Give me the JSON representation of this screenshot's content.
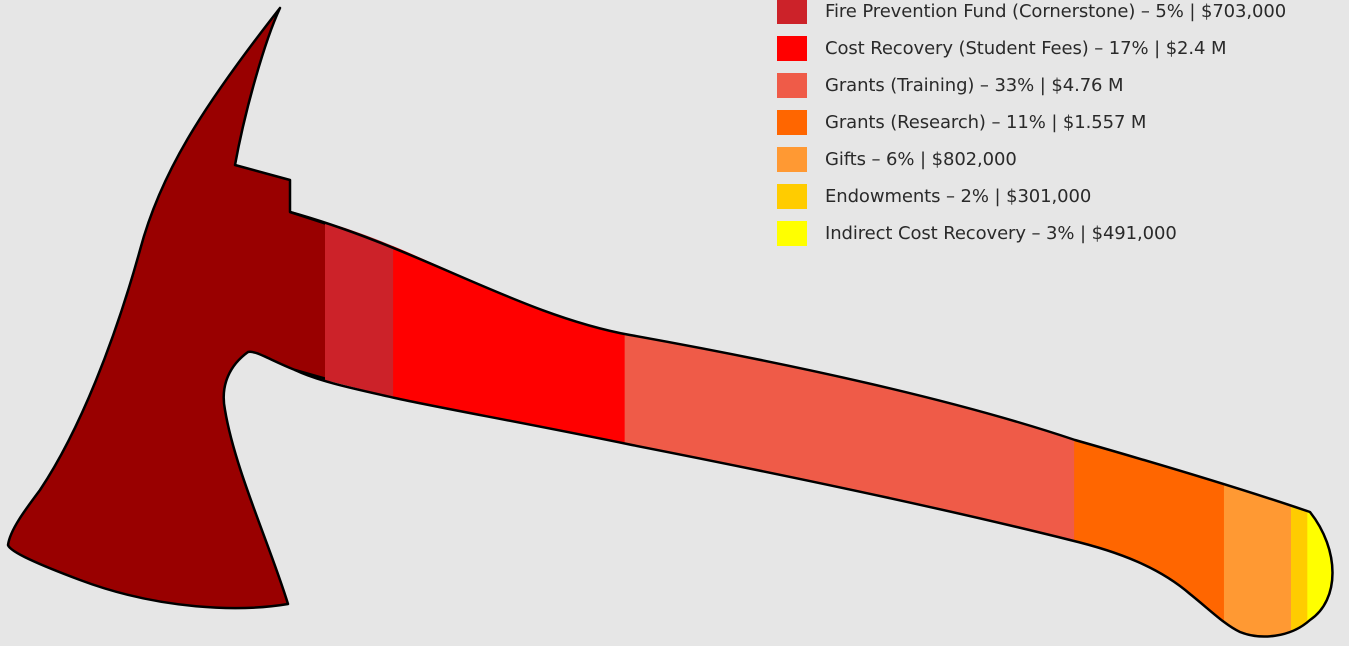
{
  "chart_data": {
    "type": "bar",
    "title": "",
    "units": "USD",
    "series": [
      {
        "name": "Fire Prevention Fund (Cornerstone)",
        "percent": 5,
        "label": "Fire Prevention Fund (Cornerstone) – 5%  |  $703,000",
        "color": "#cc2229"
      },
      {
        "name": "Cost Recovery (Student Fees)",
        "percent": 17,
        "label": "Cost Recovery (Student Fees) – 17%  |  $2.4 M",
        "color": "#ff0000"
      },
      {
        "name": "Grants (Training)",
        "percent": 33,
        "label": "Grants (Training) – 33%  |  $4.76 M",
        "color": "#ef5b48"
      },
      {
        "name": "Grants (Research)",
        "percent": 11,
        "label": "Grants (Research) – 11%  |  $1.557 M",
        "color": "#ff6600"
      },
      {
        "name": "Gifts",
        "percent": 6,
        "label": "Gifts – 6%  |  $802,000",
        "color": "#ff9933"
      },
      {
        "name": "Endowments",
        "percent": 2,
        "label": "Endowments – 2%  |  $301,000",
        "color": "#ffcc00"
      },
      {
        "name": "Indirect Cost Recovery",
        "percent": 3,
        "label": "Indirect Cost Recovery – 3%  |  $491,000",
        "color": "#ffff00"
      }
    ]
  },
  "colors": {
    "background": "#e6e6e6",
    "axe_head": "#990000",
    "outline": "#000000"
  }
}
